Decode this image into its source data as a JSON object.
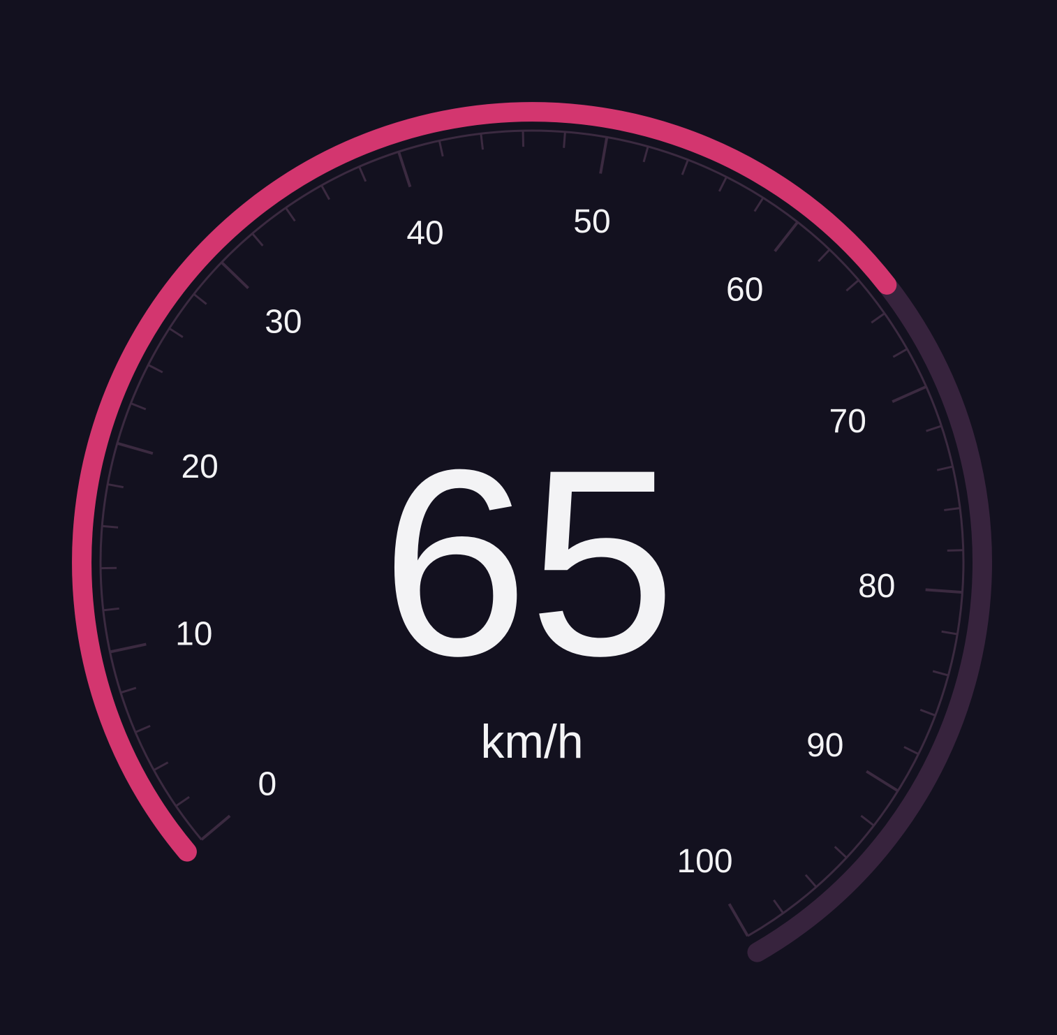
{
  "gauge": {
    "min": 0,
    "max": 100,
    "value": 65,
    "value_text": "65",
    "unit": "km/h",
    "major_step": 10,
    "minor_step": 2,
    "labels": [
      "0",
      "10",
      "20",
      "30",
      "40",
      "50",
      "60",
      "70",
      "80",
      "90",
      "100"
    ],
    "colors": {
      "background": "#13111f",
      "progress": "#d3366f",
      "track": "#37233d",
      "ticks": "#3b2a40",
      "text": "#f3f3f5"
    }
  }
}
